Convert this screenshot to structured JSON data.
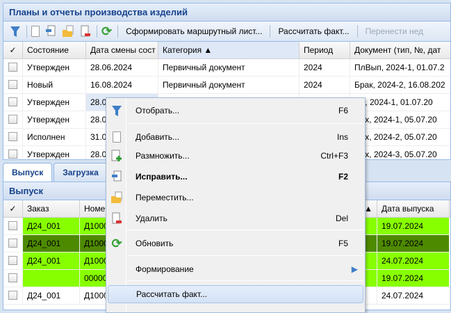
{
  "top": {
    "title": "Планы и отчеты производства изделий",
    "toolbar": {
      "route": "Сформировать маршрутный лист...",
      "calc": "Рассчитать факт...",
      "move": "Перенести нед"
    },
    "columns": [
      "Состояние",
      "Дата смены сост",
      "Категория ▲",
      "Период",
      "Документ (тип, №, дат"
    ],
    "rows": [
      [
        "Утвержден",
        "28.06.2024",
        "Первичный документ",
        "2024",
        "ПлВып, 2024-1, 01.07.2"
      ],
      [
        "Новый",
        "16.08.2024",
        "Первичный документ",
        "2024",
        "Брак, 2024-2, 16.08.202"
      ],
      [
        "Утвержден",
        "28.0",
        "",
        "",
        "Пр, 2024-1, 01.07.20"
      ],
      [
        "Утвержден",
        "28.0",
        "",
        "",
        "Цех, 2024-1, 05.07.20"
      ],
      [
        "Исполнен",
        "31.0",
        "",
        "",
        "Цех, 2024-2, 05.07.20"
      ],
      [
        "Утвержден",
        "28.0",
        "",
        "",
        "Цех, 2024-3, 05.07.20"
      ]
    ]
  },
  "tabs": [
    "Выпуск",
    "Загрузка"
  ],
  "bottom": {
    "title": "Выпуск",
    "columns": [
      "Заказ",
      "Номен",
      "а ▲",
      "Дата выпуска"
    ],
    "rows": [
      {
        "order": "Д24_001",
        "nom": "Д1000",
        "date": "19.07.2024",
        "color": "#88ff00"
      },
      {
        "order": "Д24_001",
        "nom": "Д1000",
        "date": "19.07.2024",
        "color": "#4e8a00"
      },
      {
        "order": "Д24_001",
        "nom": "Д1000",
        "date": "24.07.2024",
        "color": "#88ff00"
      },
      {
        "order": "",
        "nom": "000000",
        "date": "19.07.2024",
        "color": "#88ff00"
      },
      {
        "order": "Д24_001",
        "nom": "Д1000",
        "date": "24.07.2024",
        "color": "#ffffff"
      }
    ]
  },
  "menu": [
    {
      "label": "Отобрать...",
      "shortcut": "F6",
      "icon": "filter-icon"
    },
    {
      "label": "Добавить...",
      "shortcut": "Ins",
      "icon": "document-icon"
    },
    {
      "label": "Размножить...",
      "shortcut": "Ctrl+F3",
      "icon": "copy-add-icon"
    },
    {
      "label": "Исправить...",
      "shortcut": "F2",
      "icon": "edit-icon",
      "bold": true
    },
    {
      "label": "Переместить...",
      "shortcut": "",
      "icon": "move-folder-icon"
    },
    {
      "label": "Удалить",
      "shortcut": "Del",
      "icon": "delete-icon"
    },
    {
      "label": "Обновить",
      "shortcut": "F5",
      "icon": "refresh-icon"
    },
    {
      "label": "Формирование",
      "shortcut": "",
      "icon": "submenu-arrow-icon"
    },
    {
      "label": "Рассчитать факт...",
      "shortcut": "",
      "icon": "",
      "highlighted": true
    }
  ]
}
